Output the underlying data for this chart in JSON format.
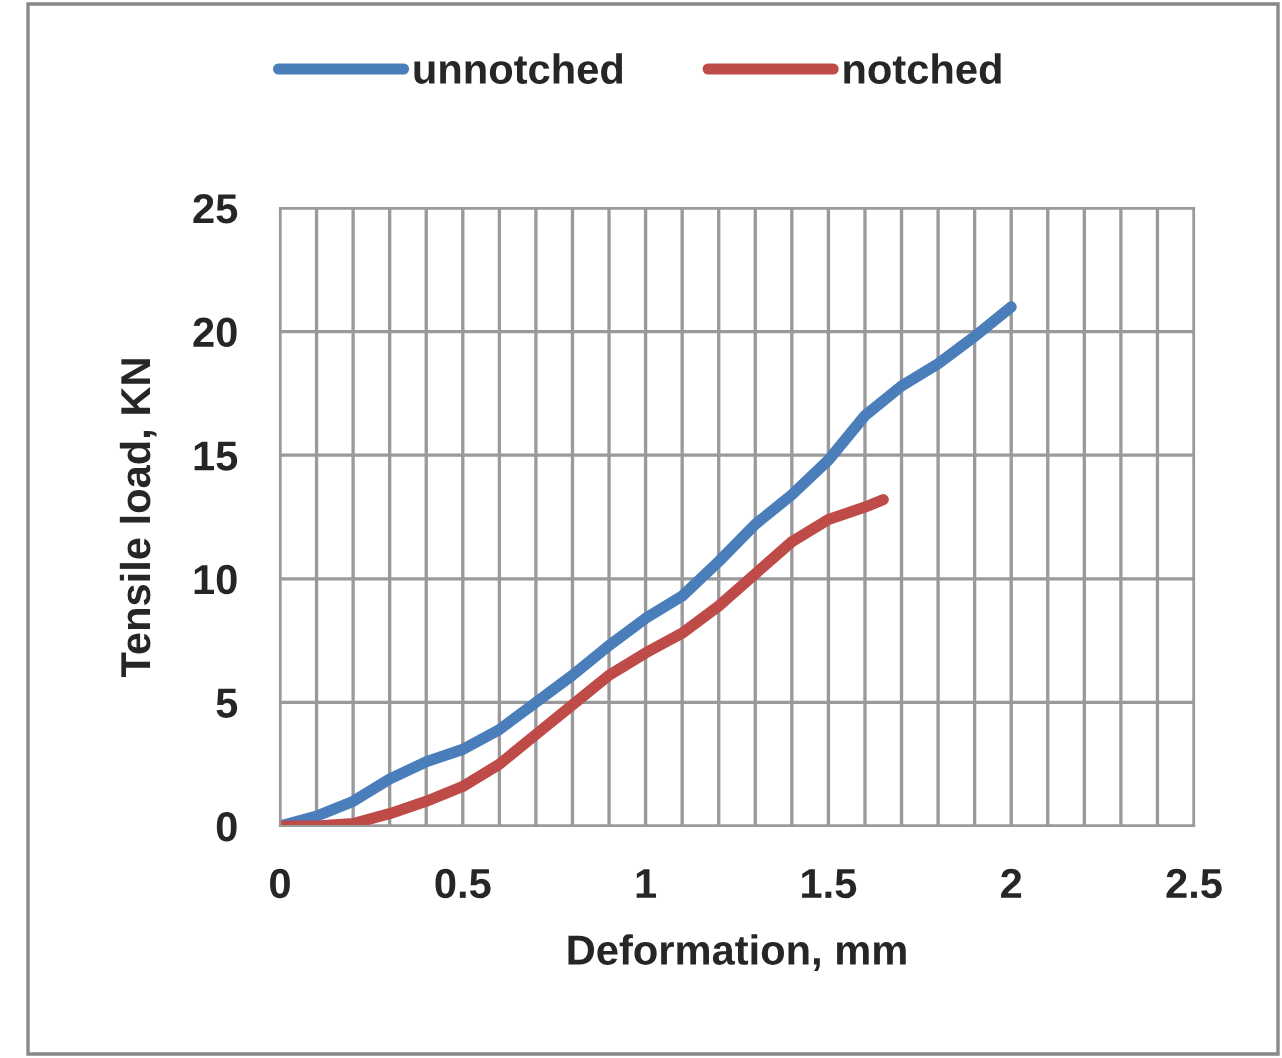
{
  "chart_data": {
    "type": "line",
    "xlabel": "Deformation, mm",
    "ylabel": "Tensile load, KN",
    "series": [
      {
        "name": "unnotched",
        "color": "#4a7ebb",
        "x": [
          0,
          0.1,
          0.2,
          0.3,
          0.4,
          0.5,
          0.6,
          0.7,
          0.8,
          0.9,
          1.0,
          1.1,
          1.2,
          1.3,
          1.4,
          1.5,
          1.6,
          1.7,
          1.8,
          1.9,
          2.0
        ],
        "values": [
          0,
          0.4,
          1.0,
          1.9,
          2.6,
          3.1,
          3.9,
          5.0,
          6.1,
          7.3,
          8.4,
          9.3,
          10.7,
          12.2,
          13.4,
          14.8,
          16.6,
          17.8,
          18.7,
          19.8,
          21.0
        ]
      },
      {
        "name": "notched",
        "color": "#be4b48",
        "x": [
          0,
          0.1,
          0.2,
          0.3,
          0.4,
          0.5,
          0.6,
          0.7,
          0.8,
          0.9,
          1.0,
          1.1,
          1.2,
          1.3,
          1.4,
          1.5,
          1.6,
          1.65
        ],
        "values": [
          0,
          0,
          0.1,
          0.5,
          1.0,
          1.6,
          2.5,
          3.7,
          4.9,
          6.1,
          7.0,
          7.8,
          8.9,
          10.2,
          11.5,
          12.4,
          12.9,
          13.2
        ]
      }
    ],
    "xlim": [
      0,
      2.5
    ],
    "ylim": [
      0,
      25
    ],
    "xticks": [
      0,
      {
        "value": 0.1,
        "label": null
      },
      {
        "value": 0.2,
        "label": null
      },
      {
        "value": 0.3,
        "label": null
      },
      {
        "value": 0.4,
        "label": null
      },
      0.5,
      {
        "value": 0.6,
        "label": null
      },
      {
        "value": 0.7,
        "label": null
      },
      {
        "value": 0.8,
        "label": null
      },
      {
        "value": 0.9,
        "label": null
      },
      1,
      {
        "value": 1.1,
        "label": null
      },
      {
        "value": 1.2,
        "label": null
      },
      {
        "value": 1.3,
        "label": null
      },
      {
        "value": 1.4,
        "label": null
      },
      1.5,
      {
        "value": 1.6,
        "label": null
      },
      {
        "value": 1.7,
        "label": null
      },
      {
        "value": 1.8,
        "label": null
      },
      {
        "value": 1.9,
        "label": null
      },
      2,
      {
        "value": 2.1,
        "label": null
      },
      {
        "value": 2.2,
        "label": null
      },
      {
        "value": 2.3,
        "label": null
      },
      {
        "value": 2.4,
        "label": null
      },
      2.5
    ],
    "yticks": [
      0,
      5,
      10,
      15,
      20,
      25
    ],
    "grid": true,
    "legend": "top",
    "marker": "none",
    "line_style": "solid"
  }
}
